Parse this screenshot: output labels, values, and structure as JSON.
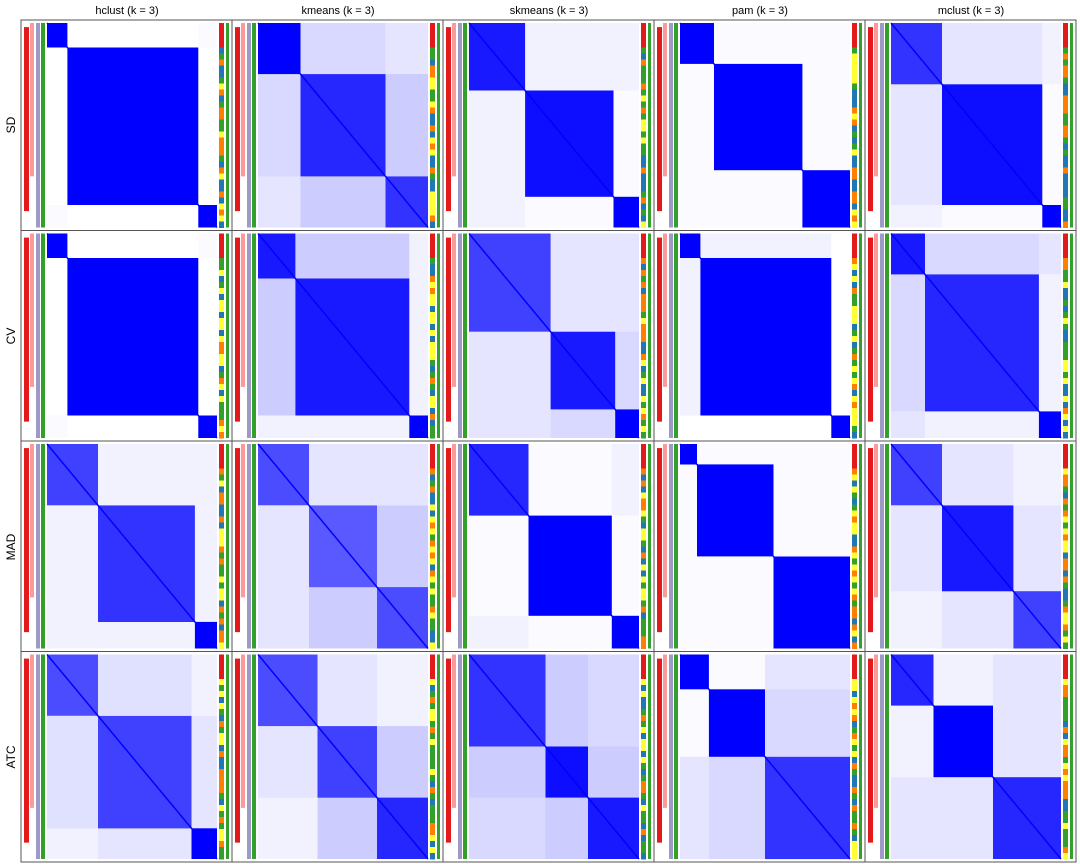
{
  "chart_data": {
    "type": "heatmap",
    "value_range": [
      0,
      1
    ],
    "colors": {
      "low": "#ffffff",
      "high": "#0000ff",
      "panel_border": "#555555",
      "bar_colors": [
        "#e31a1c",
        "#fb9a99",
        "#1f78b4",
        "#33a02c",
        "#ff7f00",
        "#ffff33",
        "#9e9ac8",
        "#e31a1c"
      ]
    },
    "method_labels": [
      "hclust (k = 3)",
      "kmeans (k = 3)",
      "skmeans (k = 3)",
      "pam (k = 3)",
      "mclust (k = 3)"
    ],
    "row_labels": [
      "SD",
      "CV",
      "MAD",
      "ATC"
    ],
    "panels": [
      {
        "row": "SD",
        "method": "hclust (k = 3)",
        "block_bounds": [
          0,
          0.12,
          0.89,
          1.0
        ],
        "block_values": [
          [
            1,
            0,
            0.02
          ],
          [
            0,
            1,
            0
          ],
          [
            0.02,
            0,
            1
          ]
        ]
      },
      {
        "row": "SD",
        "method": "kmeans (k = 3)",
        "block_bounds": [
          0,
          0.25,
          0.75,
          1.0
        ],
        "block_values": [
          [
            1,
            0.15,
            0.1
          ],
          [
            0.15,
            0.85,
            0.2
          ],
          [
            0.1,
            0.2,
            0.8
          ]
        ]
      },
      {
        "row": "SD",
        "method": "skmeans (k = 3)",
        "block_bounds": [
          0,
          0.33,
          0.85,
          1.0
        ],
        "block_values": [
          [
            0.9,
            0.05,
            0.05
          ],
          [
            0.05,
            0.95,
            0.02
          ],
          [
            0.05,
            0.02,
            1
          ]
        ]
      },
      {
        "row": "SD",
        "method": "pam (k = 3)",
        "block_bounds": [
          0,
          0.2,
          0.72,
          1.0
        ],
        "block_values": [
          [
            1,
            0.02,
            0.02
          ],
          [
            0.02,
            1,
            0.02
          ],
          [
            0.02,
            0.02,
            1
          ]
        ]
      },
      {
        "row": "SD",
        "method": "mclust (k = 3)",
        "block_bounds": [
          0,
          0.3,
          0.89,
          1.0
        ],
        "block_values": [
          [
            0.8,
            0.1,
            0.05
          ],
          [
            0.1,
            0.95,
            0.02
          ],
          [
            0.05,
            0.02,
            1
          ]
        ]
      },
      {
        "row": "CV",
        "method": "hclust (k = 3)",
        "block_bounds": [
          0,
          0.12,
          0.89,
          1.0
        ],
        "block_values": [
          [
            1,
            0,
            0.02
          ],
          [
            0,
            1,
            0
          ],
          [
            0.02,
            0,
            1
          ]
        ]
      },
      {
        "row": "CV",
        "method": "kmeans (k = 3)",
        "block_bounds": [
          0,
          0.22,
          0.89,
          1.0
        ],
        "block_values": [
          [
            0.9,
            0.2,
            0.05
          ],
          [
            0.2,
            0.9,
            0.05
          ],
          [
            0.05,
            0.05,
            1
          ]
        ]
      },
      {
        "row": "CV",
        "method": "skmeans (k = 3)",
        "block_bounds": [
          0,
          0.48,
          0.86,
          1.0
        ],
        "block_values": [
          [
            0.75,
            0.1,
            0.1
          ],
          [
            0.1,
            0.9,
            0.15
          ],
          [
            0.1,
            0.15,
            1
          ]
        ]
      },
      {
        "row": "CV",
        "method": "pam (k = 3)",
        "block_bounds": [
          0,
          0.12,
          0.89,
          1.0
        ],
        "block_values": [
          [
            1,
            0.05,
            0
          ],
          [
            0.05,
            1,
            0
          ],
          [
            0,
            0,
            1
          ]
        ]
      },
      {
        "row": "CV",
        "method": "mclust (k = 3)",
        "block_bounds": [
          0,
          0.2,
          0.87,
          1.0
        ],
        "block_values": [
          [
            0.9,
            0.15,
            0.1
          ],
          [
            0.15,
            0.85,
            0.05
          ],
          [
            0.1,
            0.05,
            1
          ]
        ]
      },
      {
        "row": "MAD",
        "method": "hclust (k = 3)",
        "block_bounds": [
          0,
          0.3,
          0.87,
          1.0
        ],
        "block_values": [
          [
            0.75,
            0.05,
            0.05
          ],
          [
            0.05,
            0.8,
            0.05
          ],
          [
            0.05,
            0.05,
            1
          ]
        ]
      },
      {
        "row": "MAD",
        "method": "kmeans (k = 3)",
        "block_bounds": [
          0,
          0.3,
          0.7,
          1.0
        ],
        "block_values": [
          [
            0.7,
            0.1,
            0.1
          ],
          [
            0.1,
            0.65,
            0.2
          ],
          [
            0.1,
            0.2,
            0.7
          ]
        ]
      },
      {
        "row": "MAD",
        "method": "skmeans (k = 3)",
        "block_bounds": [
          0,
          0.35,
          0.84,
          1.0
        ],
        "block_values": [
          [
            0.85,
            0.02,
            0.05
          ],
          [
            0.02,
            1,
            0.02
          ],
          [
            0.05,
            0.02,
            1
          ]
        ]
      },
      {
        "row": "MAD",
        "method": "pam (k = 3)",
        "block_bounds": [
          0,
          0.1,
          0.55,
          1.0
        ],
        "block_values": [
          [
            1,
            0.02,
            0.02
          ],
          [
            0.02,
            1,
            0.02
          ],
          [
            0.02,
            0.02,
            1
          ]
        ]
      },
      {
        "row": "MAD",
        "method": "mclust (k = 3)",
        "block_bounds": [
          0,
          0.3,
          0.72,
          1.0
        ],
        "block_values": [
          [
            0.75,
            0.1,
            0.05
          ],
          [
            0.1,
            0.9,
            0.1
          ],
          [
            0.05,
            0.1,
            0.75
          ]
        ]
      },
      {
        "row": "ATC",
        "method": "hclust (k = 3)",
        "block_bounds": [
          0,
          0.3,
          0.85,
          1.0
        ],
        "block_values": [
          [
            0.7,
            0.12,
            0.05
          ],
          [
            0.12,
            0.75,
            0.1
          ],
          [
            0.05,
            0.1,
            1
          ]
        ]
      },
      {
        "row": "ATC",
        "method": "kmeans (k = 3)",
        "block_bounds": [
          0,
          0.35,
          0.7,
          1.0
        ],
        "block_values": [
          [
            0.7,
            0.1,
            0.05
          ],
          [
            0.1,
            0.75,
            0.2
          ],
          [
            0.05,
            0.2,
            0.85
          ]
        ]
      },
      {
        "row": "ATC",
        "method": "skmeans (k = 3)",
        "block_bounds": [
          0,
          0.45,
          0.7,
          1.0
        ],
        "block_values": [
          [
            0.8,
            0.2,
            0.15
          ],
          [
            0.2,
            0.95,
            0.2
          ],
          [
            0.15,
            0.2,
            0.9
          ]
        ]
      },
      {
        "row": "ATC",
        "method": "pam (k = 3)",
        "block_bounds": [
          0,
          0.17,
          0.5,
          1.0
        ],
        "block_values": [
          [
            1,
            0.02,
            0.1
          ],
          [
            0.02,
            1,
            0.15
          ],
          [
            0.1,
            0.15,
            0.8
          ]
        ]
      },
      {
        "row": "ATC",
        "method": "mclust (k = 3)",
        "block_bounds": [
          0,
          0.25,
          0.6,
          1.0
        ],
        "block_values": [
          [
            0.85,
            0.05,
            0.1
          ],
          [
            0.05,
            1,
            0.1
          ],
          [
            0.1,
            0.1,
            0.85
          ]
        ]
      }
    ]
  }
}
